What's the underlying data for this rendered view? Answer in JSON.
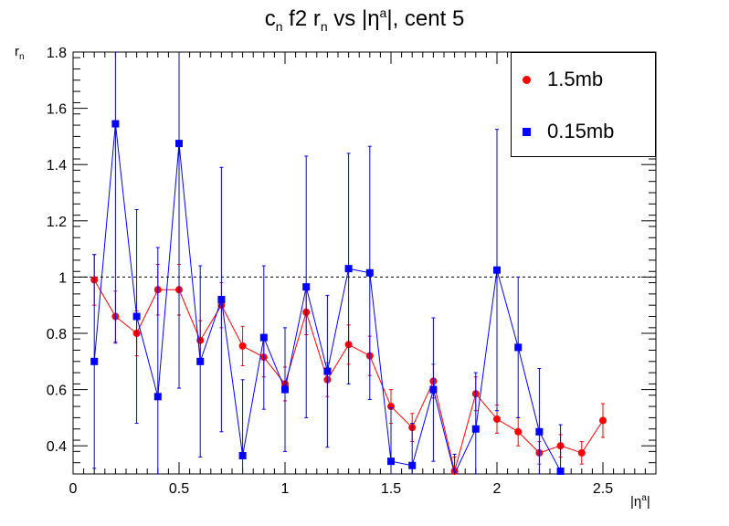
{
  "chart_data": {
    "type": "scatter",
    "title": {
      "base": "c",
      "sub": "n",
      "mid": " f2 r",
      "sub2": "n",
      "post": " vs |η",
      "sup": "a",
      "tail": "|, cent 5"
    },
    "xlabel": {
      "base": "|η",
      "sup": "a",
      "tail": "|"
    },
    "ylabel": {
      "base": "r",
      "sub": "n"
    },
    "xlim": [
      0,
      2.75
    ],
    "ylim": [
      0.3,
      1.8
    ],
    "x_ticks": [
      "0",
      "0.5",
      "1",
      "1.5",
      "2",
      "2.5"
    ],
    "y_ticks": [
      "0.4",
      "0.6",
      "0.8",
      "1",
      "1.2",
      "1.4",
      "1.6",
      "1.8"
    ],
    "reference_line": 1.0,
    "legend_position": "top-right",
    "series": [
      {
        "name": "1.5mb",
        "color": "#ff0000",
        "marker": "circle",
        "points": [
          [
            0.1,
            0.99,
            0.09
          ],
          [
            0.2,
            0.86,
            0.09
          ],
          [
            0.3,
            0.8,
            0.08
          ],
          [
            0.4,
            0.955,
            0.09
          ],
          [
            0.5,
            0.955,
            0.09
          ],
          [
            0.6,
            0.775,
            0.07
          ],
          [
            0.7,
            0.9,
            0.08
          ],
          [
            0.8,
            0.755,
            0.07
          ],
          [
            0.9,
            0.715,
            0.07
          ],
          [
            1.0,
            0.62,
            0.06
          ],
          [
            1.1,
            0.875,
            0.08
          ],
          [
            1.2,
            0.635,
            0.06
          ],
          [
            1.3,
            0.76,
            0.07
          ],
          [
            1.4,
            0.72,
            0.07
          ],
          [
            1.5,
            0.54,
            0.06
          ],
          [
            1.6,
            0.465,
            0.05
          ],
          [
            1.7,
            0.63,
            0.06
          ],
          [
            1.8,
            0.31,
            0.05
          ],
          [
            1.9,
            0.585,
            0.06
          ],
          [
            2.0,
            0.495,
            0.05
          ],
          [
            2.1,
            0.45,
            0.05
          ],
          [
            2.2,
            0.375,
            0.04
          ],
          [
            2.3,
            0.4,
            0.04
          ],
          [
            2.4,
            0.375,
            0.04
          ],
          [
            2.5,
            0.49,
            0.06
          ]
        ]
      },
      {
        "name": "0.15mb",
        "color": "#0000ff",
        "marker": "square",
        "points": [
          [
            0.1,
            0.7,
            0.38
          ],
          [
            0.2,
            1.545,
            0.78
          ],
          [
            0.3,
            0.86,
            0.38
          ],
          [
            0.4,
            0.575,
            0.53
          ],
          [
            0.5,
            1.475,
            0.87
          ],
          [
            0.6,
            0.7,
            0.34
          ],
          [
            0.7,
            0.92,
            0.47
          ],
          [
            0.8,
            0.365,
            0.27
          ],
          [
            0.9,
            0.785,
            0.255
          ],
          [
            1.0,
            0.6,
            0.22
          ],
          [
            1.1,
            0.965,
            0.465
          ],
          [
            1.2,
            0.665,
            0.27
          ],
          [
            1.3,
            1.03,
            0.41
          ],
          [
            1.4,
            1.015,
            0.45
          ],
          [
            1.5,
            0.345,
            0.19
          ],
          [
            1.6,
            0.33,
            0.15
          ],
          [
            1.7,
            0.6,
            0.255
          ],
          [
            1.8,
            0.27,
            0.1
          ],
          [
            1.9,
            0.46,
            0.2
          ],
          [
            2.0,
            1.025,
            0.5
          ],
          [
            2.1,
            0.75,
            0.25
          ],
          [
            2.2,
            0.45,
            0.225
          ],
          [
            2.3,
            0.31,
            0.165
          ]
        ]
      }
    ]
  }
}
